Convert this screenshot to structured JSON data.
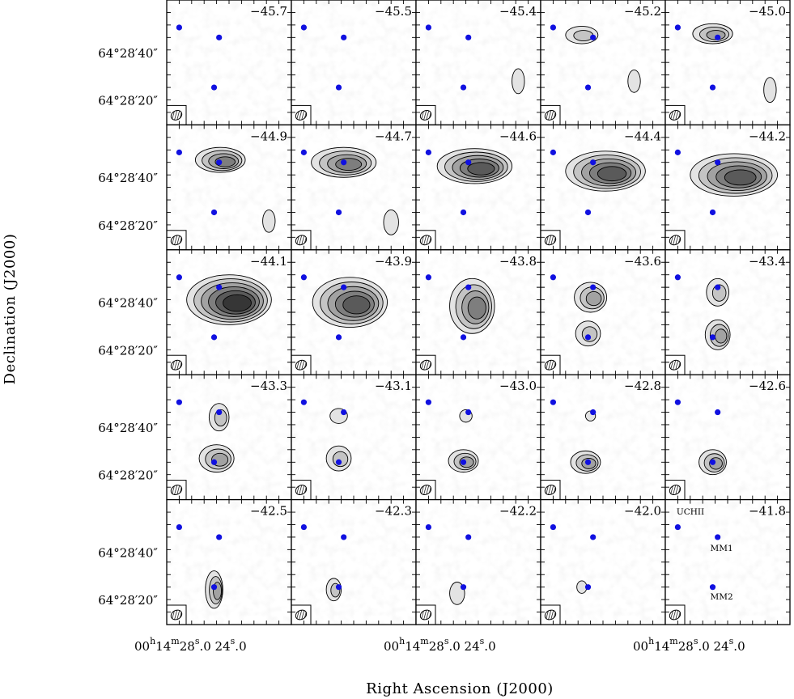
{
  "chart_data": {
    "type": "contour-channel-map",
    "xlabel": "Right Ascension (J2000)",
    "ylabel": "Declination (J2000)",
    "ytick_labels": [
      "64°28′40″",
      "64°28′20″"
    ],
    "xtick_labels": {
      "h": "00",
      "m": "14",
      "s1": "28",
      "s1frac": "0",
      "s2": "24",
      "s2frac": "0"
    },
    "velocities": [
      "−45.7",
      "−45.5",
      "−45.4",
      "−45.2",
      "−45.0",
      "−44.9",
      "−44.7",
      "−44.6",
      "−44.4",
      "−44.2",
      "−44.1",
      "−43.9",
      "−43.8",
      "−43.6",
      "−43.4",
      "−43.3",
      "−43.1",
      "−43.0",
      "−42.8",
      "−42.6",
      "−42.5",
      "−42.3",
      "−42.2",
      "−42.0",
      "−41.8"
    ],
    "sources": [
      {
        "name": "UCHII",
        "ra_offset": 0.1,
        "dec_offset": 0.78
      },
      {
        "name": "MM1",
        "ra_offset": 0.42,
        "dec_offset": 0.7
      },
      {
        "name": "MM2",
        "ra_offset": 0.38,
        "dec_offset": 0.3
      }
    ],
    "marker_color": "#1010e0",
    "emission": [
      [],
      [],
      [
        {
          "x": 0.82,
          "y": 0.35,
          "rx": 0.05,
          "ry": 0.1,
          "l": 1
        }
      ],
      [
        {
          "x": 0.33,
          "y": 0.72,
          "rx": 0.13,
          "ry": 0.07,
          "l": 2
        },
        {
          "x": 0.75,
          "y": 0.35,
          "rx": 0.05,
          "ry": 0.09,
          "l": 1
        }
      ],
      [
        {
          "x": 0.38,
          "y": 0.73,
          "rx": 0.16,
          "ry": 0.08,
          "l": 3
        },
        {
          "x": 0.84,
          "y": 0.28,
          "rx": 0.05,
          "ry": 0.1,
          "l": 1
        }
      ],
      [
        {
          "x": 0.43,
          "y": 0.72,
          "rx": 0.2,
          "ry": 0.1,
          "l": 4
        },
        {
          "x": 0.82,
          "y": 0.23,
          "rx": 0.05,
          "ry": 0.09,
          "l": 1
        }
      ],
      [
        {
          "x": 0.42,
          "y": 0.7,
          "rx": 0.26,
          "ry": 0.12,
          "l": 4
        },
        {
          "x": 0.8,
          "y": 0.22,
          "rx": 0.06,
          "ry": 0.1,
          "l": 1
        }
      ],
      [
        {
          "x": 0.47,
          "y": 0.67,
          "rx": 0.3,
          "ry": 0.14,
          "l": 5
        }
      ],
      [
        {
          "x": 0.52,
          "y": 0.63,
          "rx": 0.32,
          "ry": 0.16,
          "l": 5
        }
      ],
      [
        {
          "x": 0.55,
          "y": 0.6,
          "rx": 0.35,
          "ry": 0.17,
          "l": 5
        }
      ],
      [
        {
          "x": 0.5,
          "y": 0.6,
          "rx": 0.34,
          "ry": 0.2,
          "l": 6
        }
      ],
      [
        {
          "x": 0.47,
          "y": 0.58,
          "rx": 0.3,
          "ry": 0.2,
          "l": 5
        }
      ],
      [
        {
          "x": 0.45,
          "y": 0.55,
          "rx": 0.18,
          "ry": 0.22,
          "l": 4
        }
      ],
      [
        {
          "x": 0.4,
          "y": 0.62,
          "rx": 0.13,
          "ry": 0.12,
          "l": 3
        },
        {
          "x": 0.38,
          "y": 0.33,
          "rx": 0.1,
          "ry": 0.1,
          "l": 2
        }
      ],
      [
        {
          "x": 0.42,
          "y": 0.66,
          "rx": 0.09,
          "ry": 0.11,
          "l": 2
        },
        {
          "x": 0.42,
          "y": 0.32,
          "rx": 0.1,
          "ry": 0.12,
          "l": 3
        }
      ],
      [
        {
          "x": 0.42,
          "y": 0.66,
          "rx": 0.08,
          "ry": 0.11,
          "l": 2
        },
        {
          "x": 0.4,
          "y": 0.33,
          "rx": 0.14,
          "ry": 0.11,
          "l": 3
        }
      ],
      [
        {
          "x": 0.38,
          "y": 0.67,
          "rx": 0.07,
          "ry": 0.06,
          "l": 1
        },
        {
          "x": 0.38,
          "y": 0.33,
          "rx": 0.1,
          "ry": 0.1,
          "l": 2
        }
      ],
      [
        {
          "x": 0.4,
          "y": 0.67,
          "rx": 0.05,
          "ry": 0.05,
          "l": 1
        },
        {
          "x": 0.38,
          "y": 0.31,
          "rx": 0.12,
          "ry": 0.09,
          "l": 3
        }
      ],
      [
        {
          "x": 0.4,
          "y": 0.67,
          "rx": 0.04,
          "ry": 0.04,
          "l": 1
        },
        {
          "x": 0.36,
          "y": 0.3,
          "rx": 0.12,
          "ry": 0.09,
          "l": 3
        }
      ],
      [
        {
          "x": 0.38,
          "y": 0.3,
          "rx": 0.11,
          "ry": 0.1,
          "l": 3
        }
      ],
      [
        {
          "x": 0.38,
          "y": 0.28,
          "rx": 0.07,
          "ry": 0.15,
          "l": 3
        }
      ],
      [
        {
          "x": 0.34,
          "y": 0.28,
          "rx": 0.06,
          "ry": 0.09,
          "l": 2
        }
      ],
      [
        {
          "x": 0.33,
          "y": 0.25,
          "rx": 0.06,
          "ry": 0.09,
          "l": 1
        }
      ],
      [
        {
          "x": 0.33,
          "y": 0.3,
          "rx": 0.04,
          "ry": 0.05,
          "l": 1
        }
      ],
      []
    ]
  }
}
